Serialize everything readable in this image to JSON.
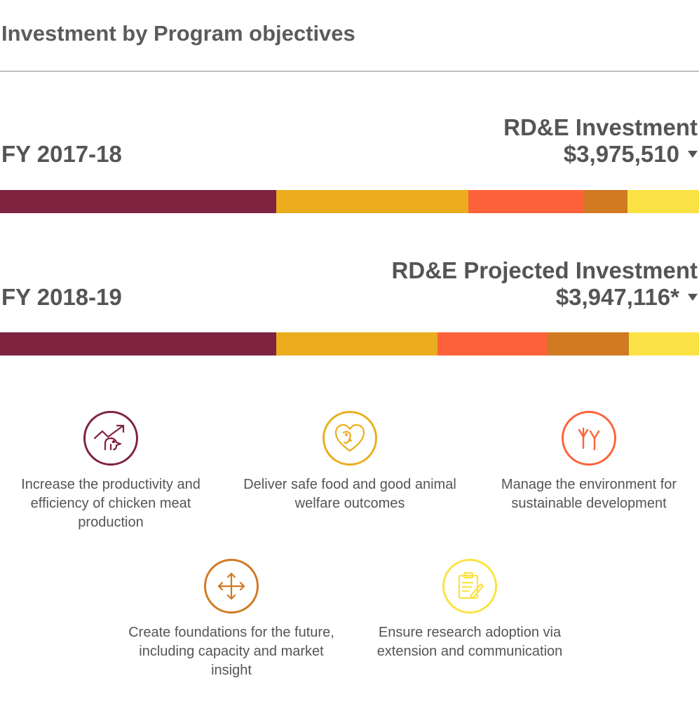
{
  "title": "Investment by Program objectives",
  "years": [
    {
      "fy_label": "FY 2017-18",
      "investment_label": "RD&E Investment",
      "investment_value": "$3,975,510"
    },
    {
      "fy_label": "FY 2018-19",
      "investment_label": "RD&E Projected Investment",
      "investment_value": "$3,947,116*"
    }
  ],
  "objectives": [
    {
      "label": "Increase the productivity and efficiency of chicken meat production",
      "icon": "chicken-growth-icon",
      "color": "#7e2440"
    },
    {
      "label": "Deliver safe food and good animal welfare outcomes",
      "icon": "chicken-heart-icon",
      "color": "#ebad1e"
    },
    {
      "label": "Manage the environment for sustainable development",
      "icon": "sprout-icon",
      "color": "#fe623a"
    },
    {
      "label": "Create foundations for the future, including capacity and market insight",
      "icon": "move-arrows-icon",
      "color": "#d07a22"
    },
    {
      "label": "Ensure research adoption via extension and communication",
      "icon": "clipboard-pen-icon",
      "color": "#fbe244"
    }
  ],
  "chart_data": {
    "type": "bar",
    "orientation": "horizontal-stacked-100",
    "categories": [
      "FY 2017-18",
      "FY 2018-19"
    ],
    "series": [
      {
        "name": "Increase the productivity and efficiency of chicken meat production",
        "color": "#7e2440",
        "values": [
          39.5,
          39.5
        ]
      },
      {
        "name": "Deliver safe food and good animal welfare outcomes",
        "color": "#ebad1e",
        "values": [
          27.5,
          23.1
        ]
      },
      {
        "name": "Manage the environment for sustainable development",
        "color": "#fe623a",
        "values": [
          16.6,
          15.6
        ]
      },
      {
        "name": "Create foundations for the future, including capacity and market insight",
        "color": "#d07a22",
        "values": [
          6.2,
          11.8
        ]
      },
      {
        "name": "Ensure research adoption via extension and communication",
        "color": "#fbe244",
        "values": [
          10.2,
          10.0
        ]
      }
    ],
    "unit": "percent of total investment"
  }
}
